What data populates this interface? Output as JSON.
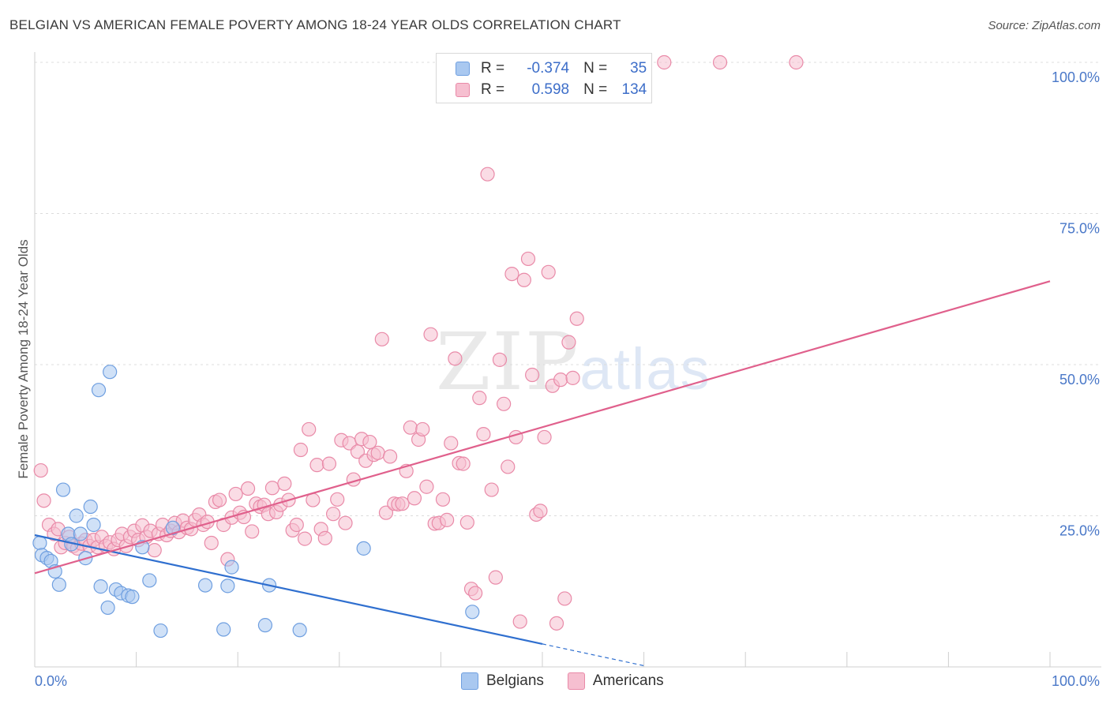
{
  "header": {
    "title": "BELGIAN VS AMERICAN FEMALE POVERTY AMONG 18-24 YEAR OLDS CORRELATION CHART",
    "source": "Source: ZipAtlas.com"
  },
  "watermark": {
    "zip": "ZIP",
    "atlas": "atlas"
  },
  "legend": {
    "row1": {
      "r_label": "R =",
      "r_value": "-0.374",
      "n_label": "N =",
      "n_value": "35"
    },
    "row2": {
      "r_label": "R =",
      "r_value": "0.598",
      "n_label": "N =",
      "n_value": "134"
    }
  },
  "bottom_legend": {
    "belgians": "Belgians",
    "americans": "Americans"
  },
  "chart_data": {
    "type": "scatter",
    "title": "BELGIAN VS AMERICAN FEMALE POVERTY AMONG 18-24 YEAR OLDS CORRELATION CHART",
    "xlabel": "",
    "ylabel": "Female Poverty Among 18-24 Year Olds",
    "xlim": [
      0,
      100
    ],
    "ylim": [
      0,
      100
    ],
    "x_tick_labels": [
      "0.0%",
      "100.0%"
    ],
    "y_ticks": [
      25,
      50,
      75,
      100
    ],
    "y_tick_labels": [
      "25.0%",
      "50.0%",
      "75.0%",
      "100.0%"
    ],
    "grid": true,
    "legend_position": "top-center",
    "colors": {
      "belgians_fill": "#a9c8f0",
      "belgians_stroke": "#6f9fe0",
      "belgians_line": "#2f6fcf",
      "americans_fill": "#f6bfd0",
      "americans_stroke": "#e98aa8",
      "americans_line": "#e0608c",
      "tick_text": "#4a78c8"
    },
    "series": [
      {
        "name": "Belgians",
        "r": -0.374,
        "n": 35,
        "trend": {
          "x0": 0,
          "y0": 21.8,
          "x1": 50,
          "y1": 3.8,
          "dashed_to_x": 60
        },
        "points": [
          [
            0.5,
            20.5
          ],
          [
            0.7,
            18.5
          ],
          [
            1.2,
            18.0
          ],
          [
            1.6,
            17.5
          ],
          [
            2.0,
            15.8
          ],
          [
            2.4,
            13.6
          ],
          [
            2.8,
            29.3
          ],
          [
            3.3,
            22.0
          ],
          [
            3.6,
            20.3
          ],
          [
            4.1,
            25.0
          ],
          [
            4.5,
            22.0
          ],
          [
            5.0,
            18.0
          ],
          [
            5.5,
            26.5
          ],
          [
            5.8,
            23.5
          ],
          [
            6.3,
            45.8
          ],
          [
            6.5,
            13.3
          ],
          [
            7.2,
            9.8
          ],
          [
            7.4,
            48.8
          ],
          [
            8.0,
            12.8
          ],
          [
            8.5,
            12.2
          ],
          [
            9.2,
            11.8
          ],
          [
            9.6,
            11.6
          ],
          [
            10.6,
            19.8
          ],
          [
            11.3,
            14.3
          ],
          [
            12.4,
            6.0
          ],
          [
            13.6,
            23.0
          ],
          [
            16.8,
            13.5
          ],
          [
            18.6,
            6.2
          ],
          [
            19.0,
            13.4
          ],
          [
            19.4,
            16.5
          ],
          [
            22.7,
            6.9
          ],
          [
            23.1,
            13.5
          ],
          [
            26.1,
            6.1
          ],
          [
            32.4,
            19.6
          ],
          [
            43.1,
            9.1
          ]
        ]
      },
      {
        "name": "Americans",
        "r": 0.598,
        "n": 134,
        "trend": {
          "x0": 0,
          "y0": 15.5,
          "x1": 100,
          "y1": 63.8
        },
        "points": [
          [
            0.6,
            32.5
          ],
          [
            0.9,
            27.5
          ],
          [
            1.4,
            23.5
          ],
          [
            1.9,
            22.0
          ],
          [
            2.3,
            22.8
          ],
          [
            2.6,
            19.8
          ],
          [
            3.0,
            20.5
          ],
          [
            3.4,
            21.5
          ],
          [
            3.8,
            20.0
          ],
          [
            4.2,
            19.6
          ],
          [
            4.6,
            20.4
          ],
          [
            5.0,
            21.0
          ],
          [
            5.4,
            20.0
          ],
          [
            5.8,
            21.0
          ],
          [
            6.2,
            19.8
          ],
          [
            6.6,
            21.5
          ],
          [
            7.0,
            20.0
          ],
          [
            7.4,
            20.6
          ],
          [
            7.8,
            19.5
          ],
          [
            8.2,
            21.0
          ],
          [
            8.6,
            22.0
          ],
          [
            9.0,
            20.0
          ],
          [
            9.4,
            21.5
          ],
          [
            9.8,
            22.5
          ],
          [
            10.2,
            21.0
          ],
          [
            10.6,
            23.4
          ],
          [
            11.0,
            21.5
          ],
          [
            11.4,
            22.5
          ],
          [
            11.8,
            19.3
          ],
          [
            12.2,
            22.0
          ],
          [
            12.6,
            23.5
          ],
          [
            13.0,
            21.8
          ],
          [
            13.4,
            22.5
          ],
          [
            13.8,
            23.8
          ],
          [
            14.2,
            22.3
          ],
          [
            14.6,
            24.2
          ],
          [
            15.0,
            23.0
          ],
          [
            15.4,
            22.8
          ],
          [
            15.8,
            24.3
          ],
          [
            16.2,
            25.2
          ],
          [
            16.6,
            23.5
          ],
          [
            17.0,
            24.0
          ],
          [
            17.4,
            20.5
          ],
          [
            17.8,
            27.3
          ],
          [
            18.2,
            27.6
          ],
          [
            18.6,
            23.5
          ],
          [
            19.0,
            17.8
          ],
          [
            19.4,
            24.7
          ],
          [
            19.8,
            28.6
          ],
          [
            20.2,
            25.5
          ],
          [
            20.6,
            24.8
          ],
          [
            21.0,
            29.5
          ],
          [
            21.4,
            22.4
          ],
          [
            21.8,
            27.0
          ],
          [
            22.2,
            26.5
          ],
          [
            22.6,
            26.8
          ],
          [
            23.0,
            25.3
          ],
          [
            23.4,
            29.6
          ],
          [
            23.8,
            25.6
          ],
          [
            24.2,
            26.8
          ],
          [
            24.6,
            30.3
          ],
          [
            25.0,
            27.6
          ],
          [
            25.4,
            22.6
          ],
          [
            25.8,
            23.5
          ],
          [
            26.2,
            35.9
          ],
          [
            26.6,
            21.2
          ],
          [
            27.0,
            39.3
          ],
          [
            27.4,
            27.6
          ],
          [
            27.8,
            33.4
          ],
          [
            28.2,
            22.8
          ],
          [
            28.6,
            21.3
          ],
          [
            29.0,
            33.6
          ],
          [
            29.4,
            25.3
          ],
          [
            29.8,
            27.7
          ],
          [
            30.2,
            37.5
          ],
          [
            30.6,
            23.8
          ],
          [
            31.0,
            37.0
          ],
          [
            31.4,
            31.0
          ],
          [
            31.8,
            35.6
          ],
          [
            32.2,
            37.7
          ],
          [
            32.6,
            34.1
          ],
          [
            33.0,
            37.2
          ],
          [
            33.4,
            35.1
          ],
          [
            33.8,
            35.4
          ],
          [
            34.2,
            54.2
          ],
          [
            34.6,
            25.5
          ],
          [
            35.0,
            34.8
          ],
          [
            35.4,
            27.0
          ],
          [
            35.8,
            26.9
          ],
          [
            36.2,
            27.0
          ],
          [
            36.6,
            32.4
          ],
          [
            37.0,
            39.6
          ],
          [
            37.4,
            27.9
          ],
          [
            37.8,
            37.6
          ],
          [
            38.2,
            39.3
          ],
          [
            38.6,
            29.8
          ],
          [
            39.0,
            55.0
          ],
          [
            39.4,
            23.7
          ],
          [
            39.8,
            23.8
          ],
          [
            40.2,
            27.7
          ],
          [
            40.6,
            24.3
          ],
          [
            41.0,
            37.0
          ],
          [
            41.4,
            51.0
          ],
          [
            41.8,
            33.7
          ],
          [
            42.2,
            33.6
          ],
          [
            42.6,
            23.9
          ],
          [
            43.0,
            12.9
          ],
          [
            43.4,
            12.2
          ],
          [
            43.8,
            44.5
          ],
          [
            44.2,
            38.5
          ],
          [
            44.6,
            81.5
          ],
          [
            45.0,
            29.3
          ],
          [
            45.4,
            14.8
          ],
          [
            45.8,
            50.8
          ],
          [
            46.2,
            43.5
          ],
          [
            46.6,
            33.1
          ],
          [
            47.0,
            65.0
          ],
          [
            47.4,
            38.0
          ],
          [
            47.8,
            7.5
          ],
          [
            48.2,
            64.0
          ],
          [
            48.6,
            67.5
          ],
          [
            49.0,
            48.3
          ],
          [
            49.4,
            25.2
          ],
          [
            49.8,
            25.8
          ],
          [
            50.2,
            38.0
          ],
          [
            50.6,
            65.3
          ],
          [
            51.0,
            46.5
          ],
          [
            51.4,
            7.2
          ],
          [
            51.8,
            47.5
          ],
          [
            52.2,
            11.3
          ],
          [
            52.6,
            53.7
          ],
          [
            53.0,
            47.8
          ],
          [
            53.4,
            57.6
          ],
          [
            62.0,
            100.0
          ],
          [
            67.5,
            100.0
          ],
          [
            75.0,
            100.0
          ]
        ]
      }
    ]
  }
}
